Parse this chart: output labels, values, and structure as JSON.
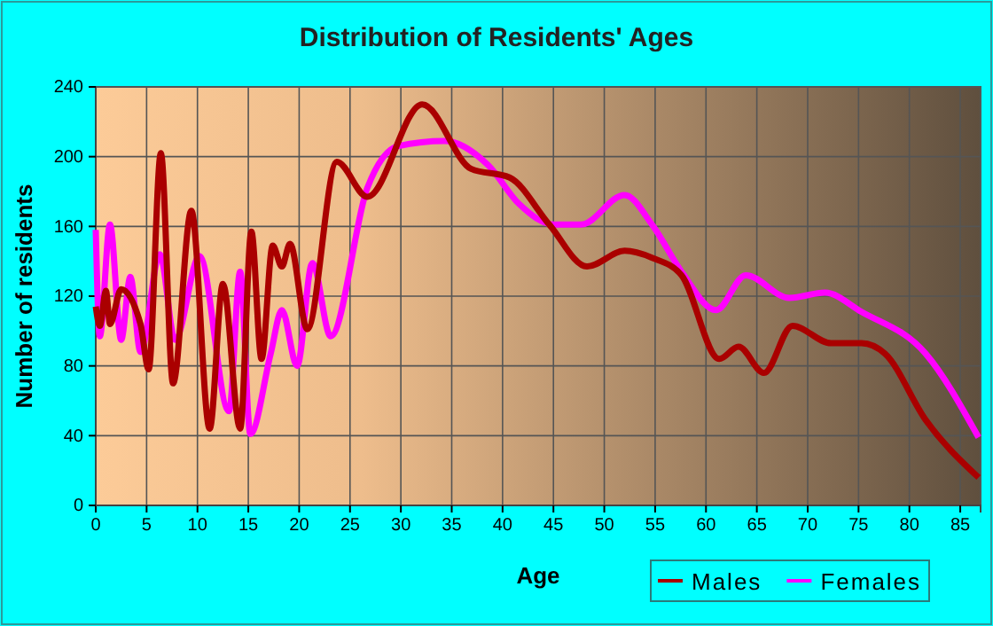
{
  "chart_data": {
    "type": "line",
    "title": "Distribution of Residents' Ages",
    "xlabel": "Age",
    "ylabel": "Number of residents",
    "xlim": [
      0,
      87
    ],
    "ylim": [
      0,
      240
    ],
    "xticks": [
      0,
      5,
      10,
      15,
      20,
      25,
      30,
      35,
      40,
      45,
      50,
      55,
      60,
      65,
      70,
      75,
      80,
      85
    ],
    "yticks": [
      0,
      40,
      80,
      120,
      160,
      200,
      240
    ],
    "grid": true,
    "legend": "bottom right",
    "line_style": "solid",
    "marker": "none",
    "series": [
      {
        "name": "Males",
        "color": "#aa0000",
        "x": [
          0,
          0.4,
          1,
          1.4,
          2.5,
          4.4,
          5.2,
          6.4,
          7.6,
          9.4,
          11.2,
          12.5,
          14.2,
          15.3,
          16.3,
          17.4,
          18.3,
          19.1,
          20.8,
          23.7,
          26.7,
          32.1,
          36.9,
          40.7,
          44.6,
          48.3,
          52,
          54.7,
          57.6,
          61.3,
          63.2,
          65.7,
          68.5,
          72.3,
          75.3,
          77.6,
          81.6,
          86.8
        ],
        "values": [
          114,
          103,
          123,
          104,
          124,
          104,
          78,
          202,
          70,
          169,
          44,
          127,
          44,
          157,
          84,
          149,
          137,
          150,
          101,
          197,
          177,
          230,
          193,
          188,
          161,
          137,
          146,
          142,
          132,
          84,
          91,
          76,
          103,
          93,
          93,
          87,
          49,
          16
        ]
      },
      {
        "name": "Females",
        "color": "#ff00ff",
        "x": [
          0,
          0.4,
          1.4,
          2.5,
          3.4,
          4.4,
          6.3,
          7.8,
          10.2,
          13.1,
          14.2,
          15.2,
          17.2,
          18.3,
          19.8,
          21.3,
          23.1,
          26.7,
          29.7,
          34.3,
          38.6,
          41.6,
          45.1,
          47.7,
          52,
          54.7,
          57.6,
          61,
          63.9,
          68.2,
          71.7,
          75.3,
          81.6,
          86.8
        ],
        "values": [
          158,
          97,
          161,
          95,
          131,
          88,
          144,
          95,
          143,
          54,
          134,
          41,
          87,
          112,
          80,
          139,
          97,
          182,
          206,
          209,
          195,
          173,
          161,
          161,
          178,
          161,
          134,
          112,
          132,
          119,
          122,
          111,
          87,
          39
        ]
      }
    ]
  }
}
